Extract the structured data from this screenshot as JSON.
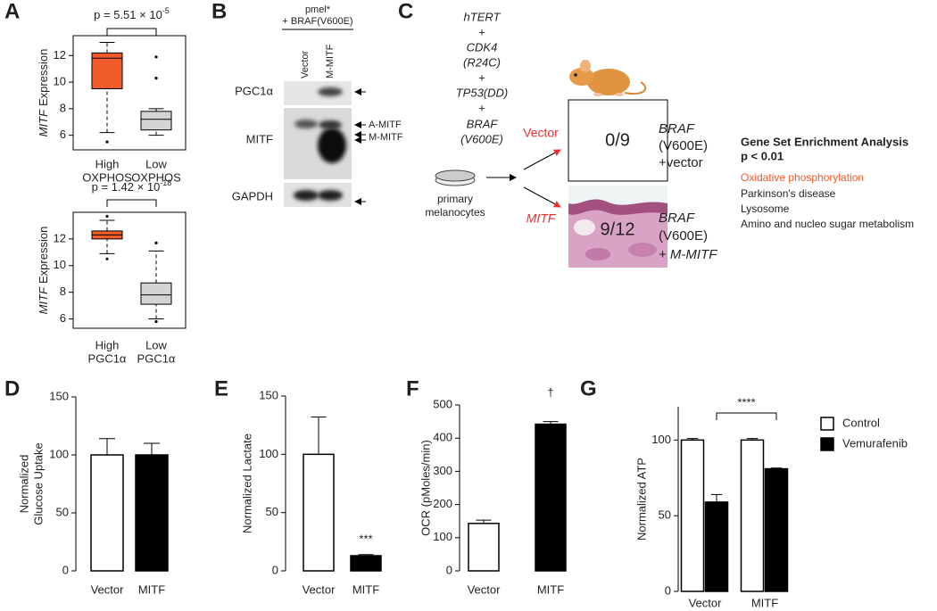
{
  "chart_data": [
    {
      "type": "box",
      "panel": "A",
      "ylabel": {
        "italic": "MITF",
        "text": "Expression"
      },
      "categories": [
        [
          "High",
          "OXPHOS"
        ],
        [
          "Low",
          "OXPHOS"
        ]
      ],
      "boxes": [
        {
          "color": "#f15a29",
          "whislo": 6.2,
          "q1": 9.5,
          "med": 11.8,
          "q3": 12.2,
          "whishi": 13.0,
          "fliers": [
            5.5
          ]
        },
        {
          "color": "#d4d4d4",
          "whislo": 6.0,
          "q1": 6.4,
          "med": 7.2,
          "q3": 7.8,
          "whishi": 8.0,
          "fliers": [
            10.3,
            11.9
          ]
        }
      ],
      "ylim": [
        4.9,
        13.5
      ],
      "yticks": [
        6,
        8,
        10,
        12
      ],
      "annotation": {
        "text": "p = 5.51 × 10",
        "exponent": "-5"
      }
    },
    {
      "type": "box",
      "ylabel": {
        "italic": "MITF",
        "text": "Expression"
      },
      "categories": [
        [
          "High",
          "PGC1α"
        ],
        [
          "Low",
          "PGC1α"
        ]
      ],
      "boxes": [
        {
          "color": "#f15a29",
          "whislo": 10.9,
          "q1": 12.0,
          "med": 12.3,
          "q3": 12.6,
          "whishi": 13.4,
          "fliers": [
            10.5,
            13.7
          ]
        },
        {
          "color": "#d4d4d4",
          "whislo": 6.0,
          "q1": 7.1,
          "med": 7.8,
          "q3": 8.7,
          "whishi": 11.1,
          "fliers": [
            11.7,
            5.8
          ]
        }
      ],
      "ylim": [
        5.3,
        14.0
      ],
      "yticks": [
        6,
        8,
        10,
        12
      ],
      "annotation": {
        "text": "p = 1.42 × 10",
        "exponent": "-18"
      }
    },
    {
      "type": "bar",
      "panel": "D",
      "ylabel": [
        "Normalized",
        "Glucose Uptake"
      ],
      "categories": [
        "Vector",
        "MITF"
      ],
      "values": [
        100,
        100
      ],
      "errors": [
        14,
        10
      ],
      "colors": [
        "#ffffff",
        "#000000"
      ],
      "ylim": [
        0,
        150
      ],
      "yticks": [
        0,
        50,
        100,
        150
      ]
    },
    {
      "type": "bar",
      "panel": "E",
      "ylabel": [
        "Normalized Lactate"
      ],
      "categories": [
        "Vector",
        "MITF"
      ],
      "values": [
        100,
        13
      ],
      "errors": [
        32,
        1
      ],
      "colors": [
        "#ffffff",
        "#000000"
      ],
      "ylim": [
        0,
        150
      ],
      "yticks": [
        0,
        50,
        100,
        150
      ],
      "annotation": "***"
    },
    {
      "type": "bar",
      "panel": "F",
      "ylabel": [
        "OCR (pMoles/min)"
      ],
      "categories": [
        "Vector",
        "MITF"
      ],
      "values": [
        143,
        442
      ],
      "errors": [
        10,
        8
      ],
      "colors": [
        "#ffffff",
        "#000000"
      ],
      "ylim": [
        0,
        500
      ],
      "yticks": [
        0,
        100,
        200,
        300,
        400,
        500
      ],
      "annotation": "†"
    },
    {
      "type": "bar",
      "panel": "G",
      "ylabel": [
        "Normalized ATP"
      ],
      "categories": [
        "Vector",
        "MITF"
      ],
      "series": [
        {
          "name": "Control",
          "color": "#ffffff",
          "values": [
            100,
            100
          ],
          "errors": [
            1,
            1
          ]
        },
        {
          "name": "Vemurafenib",
          "color": "#000000",
          "values": [
            59,
            81
          ],
          "errors": [
            5,
            0.5
          ]
        }
      ],
      "ylim": [
        0,
        122
      ],
      "yticks": [
        0,
        50,
        100
      ],
      "annotation": "****",
      "legend": "right"
    }
  ],
  "blot": {
    "panel": "B",
    "header": [
      "pmel*",
      "+ BRAF(V600E)"
    ],
    "lanes": [
      "Vector",
      "M-MITF"
    ],
    "rows": [
      "PGC1α",
      "MITF",
      "GAPDH"
    ],
    "band_labels": [
      "A-MITF",
      "M-MITF"
    ]
  },
  "diagram": {
    "panel": "C",
    "genes": [
      "hTERT",
      "+",
      "CDK4",
      "(R24C)",
      "+",
      "TP53(DD)",
      "+",
      "BRAF",
      "(V600E)"
    ],
    "cells": [
      "primary",
      "melanocytes"
    ],
    "arms": [
      {
        "label": "Vector",
        "result": "0/9",
        "description": [
          "BRAF",
          "(V600E)",
          "+vector"
        ]
      },
      {
        "label": "MITF",
        "result": "9/12",
        "description": [
          "BRAF",
          "(V600E)",
          "+ M-MITF"
        ]
      }
    ],
    "gsea": {
      "title": "Gene Set Enrichment Analysis",
      "threshold": "p < 0.01",
      "sets": [
        "Oxidative phosphorylation",
        "Parkinson's disease",
        "Lysosome",
        "Amino and nucleo sugar metabolism"
      ]
    }
  }
}
